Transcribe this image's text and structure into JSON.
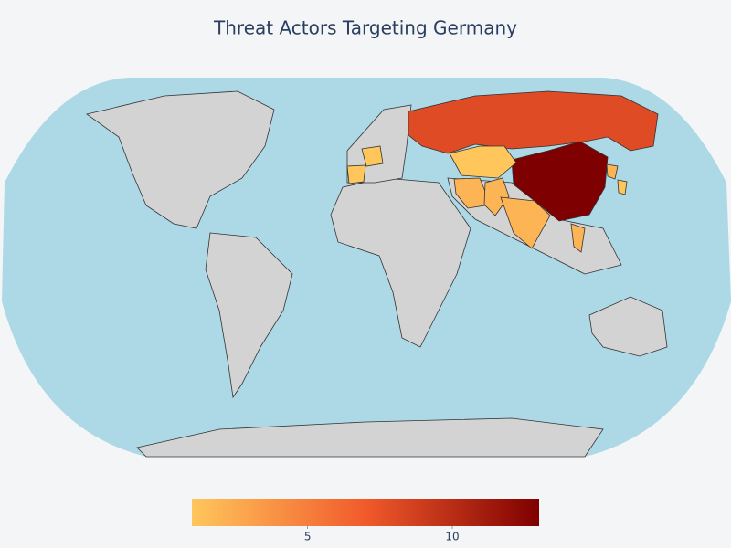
{
  "chart_data": {
    "type": "choropleth",
    "title": "Threat Actors Targeting Germany",
    "values": [
      8,
      13,
      1,
      2,
      2,
      2,
      1,
      1,
      2,
      2,
      1
    ],
    "zlim": [
      1,
      13
    ],
    "colorbar_ticks": [
      5,
      10
    ],
    "colorscale": [
      [
        0,
        "#ffc65c"
      ],
      [
        0.5,
        "#f15a2b"
      ],
      [
        1,
        "#7f0000"
      ]
    ]
  }
}
